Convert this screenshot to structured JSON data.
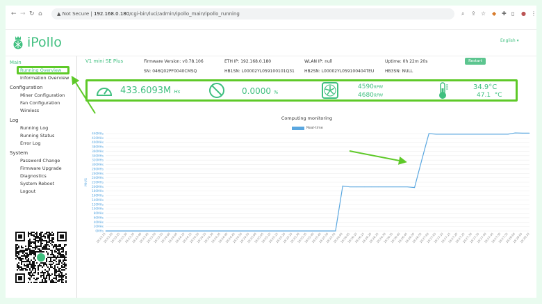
{
  "browser": {
    "security": "Not Secure",
    "url_host": "192.168.0.180",
    "url_path": "/cgi-bin/luci/admin/ipollo_main/ipollo_running"
  },
  "header": {
    "logo_text": "iPollo",
    "language": "English ▾"
  },
  "sidebar": {
    "groups": [
      {
        "label": "Main",
        "items": [
          "Running Overview",
          "Information Overview"
        ]
      },
      {
        "label": "Configuration",
        "items": [
          "Miner Configuration",
          "Fan Configuration",
          "Wireless"
        ]
      },
      {
        "label": "Log",
        "items": [
          "Running Log",
          "Running Status",
          "Error Log"
        ]
      },
      {
        "label": "System",
        "items": [
          "Password Change",
          "Firmware Upgrade",
          "Diagnostics",
          "System Reboot",
          "Logout"
        ]
      }
    ],
    "active_item": "Running Overview"
  },
  "device": {
    "model": "V1 mini SE Plus",
    "firmware": "Firmware Version: v0.78.106",
    "eth_ip": "ETH IP: 192.168.0.180",
    "wlan_ip": "WLAN IP: null",
    "uptime": "Uptime: 0h 22m 20s",
    "restart_label": "Restart",
    "sn": "SN: 046Q02PF0040CMSQ",
    "hb1sn": "HB1SN: L00002YL059100101Q31",
    "hb2sn": "HB2SN: L00002YL059100404TEU",
    "hb3sn": "HB3SN: NULL"
  },
  "stats": {
    "hashrate": "433.6093M",
    "hashrate_unit": "Hs",
    "reject": "0.0000",
    "reject_unit": "%",
    "fan1": "4590",
    "fan2": "4680",
    "fan_unit": "RPM",
    "temp1": "34.9°C",
    "temp2": "47.1  °C"
  },
  "colors": {
    "accent": "#3fbf7f",
    "annotation": "#5ec928",
    "series": "#5aa7e0"
  },
  "chart_data": {
    "type": "line",
    "title": "Computing monitoring",
    "ylabel": "MH/S",
    "xlabel": "",
    "ylim": [
      0,
      440
    ],
    "grid": true,
    "legend_placement": "top-center",
    "y_ticks": [
      "0MHs",
      "20MHs",
      "40MHs",
      "60MHs",
      "80MHs",
      "100MHs",
      "120MHs",
      "140MHs",
      "160MHs",
      "180MHs",
      "200MHs",
      "220MHs",
      "240MHs",
      "260MHs",
      "280MHs",
      "300MHs",
      "320MHs",
      "340MHs",
      "360MHs",
      "380MHs",
      "400MHs",
      "420MHs",
      "440MHs"
    ],
    "x": [
      "18:23:15",
      "18:23:20",
      "18:23:25",
      "18:23:30",
      "18:23:35",
      "18:23:40",
      "18:23:45",
      "18:23:50",
      "18:23:55",
      "18:24:00",
      "18:24:05",
      "18:24:10",
      "18:24:15",
      "18:24:20",
      "18:24:25",
      "18:24:30",
      "18:24:35",
      "18:24:40",
      "18:24:45",
      "18:24:50",
      "18:24:55",
      "18:25:00",
      "18:25:05",
      "18:25:10",
      "18:25:15",
      "18:25:20",
      "18:25:25",
      "18:25:30",
      "18:25:35",
      "18:25:40",
      "18:25:45",
      "18:25:50",
      "18:25:55",
      "18:26:00",
      "18:26:05",
      "18:26:10",
      "18:26:15",
      "18:26:20",
      "18:26:25",
      "18:26:30",
      "18:26:35",
      "18:26:40",
      "18:26:45",
      "18:26:50",
      "18:26:55",
      "18:27:00",
      "18:27:05",
      "18:27:10",
      "18:27:15",
      "18:27:20",
      "18:27:25",
      "18:27:30",
      "18:27:35",
      "18:27:40",
      "18:27:45",
      "18:27:50",
      "18:27:55",
      "18:28:00",
      "18:28:05",
      "18:28:10"
    ],
    "series": [
      {
        "name": "Real-time",
        "values": [
          0,
          0,
          0,
          0,
          0,
          0,
          0,
          0,
          0,
          0,
          0,
          0,
          0,
          0,
          0,
          0,
          0,
          0,
          0,
          0,
          0,
          0,
          0,
          0,
          0,
          0,
          0,
          0,
          0,
          0,
          0,
          0,
          0,
          203,
          199,
          199,
          199,
          199,
          199,
          199,
          199,
          199,
          199,
          196,
          320,
          440,
          437,
          437,
          437,
          437,
          437,
          437,
          437,
          437,
          437,
          437,
          437,
          443,
          442,
          442
        ]
      }
    ]
  }
}
